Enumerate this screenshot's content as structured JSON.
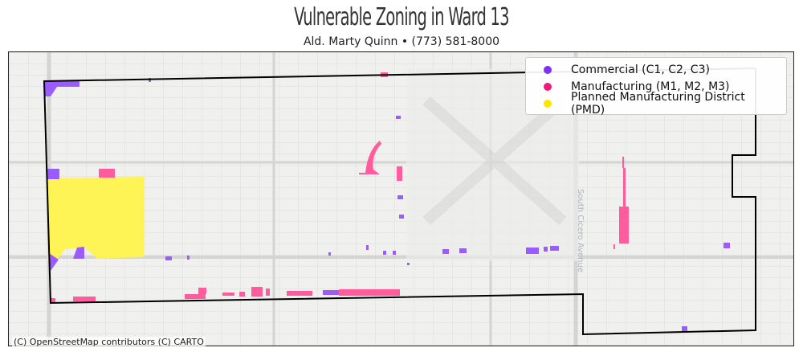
{
  "title": "Vulnerable Zoning in Ward 13",
  "subtitle": "Ald. Marty Quinn • (773) 581-8000",
  "legend": [
    {
      "label": "Commercial (C1, C2, C3)",
      "color": "#7b2ff7"
    },
    {
      "label": "Manufacturing (M1, M2, M3)",
      "color": "#f0197d"
    },
    {
      "label": "Planned Manufacturing District (PMD)",
      "color": "#ffe600"
    }
  ],
  "street_labels": [
    "South Cicero Avenue"
  ],
  "attribution": "(C) OpenStreetMap contributors (C) CARTO",
  "colors": {
    "commercial": "#9b5cff",
    "manufacturing": "#ff5c9d",
    "pmd": "#fff34d",
    "boundary": "#000000"
  }
}
